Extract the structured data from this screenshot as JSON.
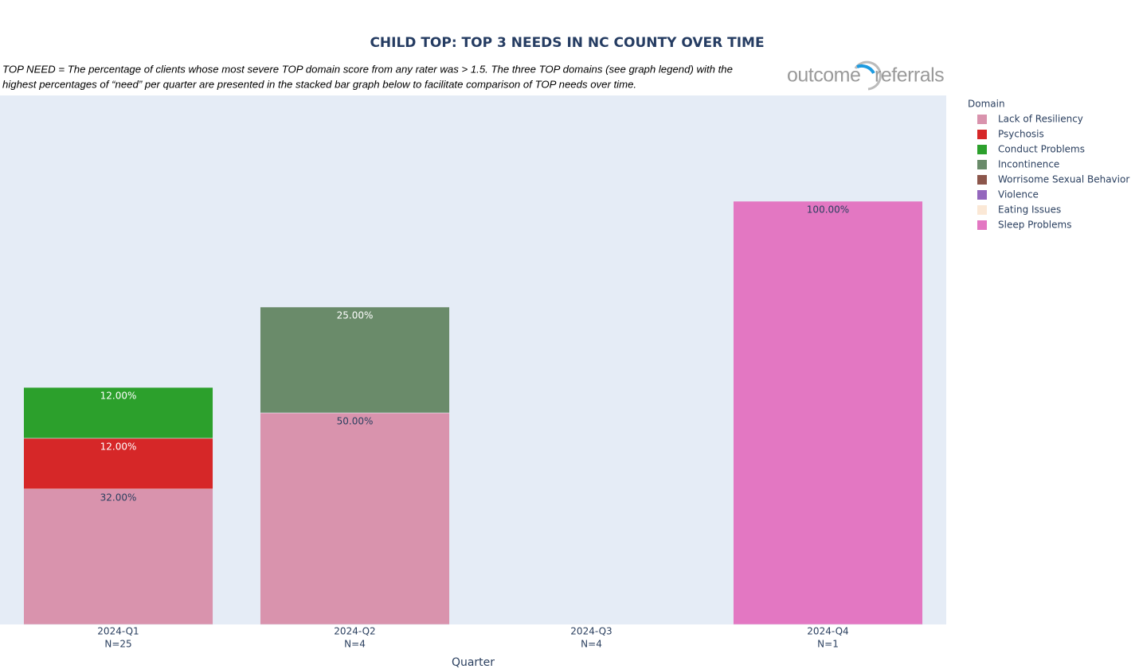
{
  "chart_data": {
    "type": "bar",
    "title": "CHILD TOP: TOP 3 NEEDS IN NC COUNTY OVER TIME",
    "description": [
      "TOP NEED = The percentage of clients whose most severe TOP domain score from any rater was > 1.5.  The three TOP domains (see graph legend) with the",
      "highest percentages of “need” per quarter are presented in the stacked bar graph below to facilitate comparison of TOP needs over time."
    ],
    "logo": [
      "outcome",
      "referrals"
    ],
    "x_label": "Quarter",
    "legend_title": "Domain",
    "categories": [
      "2024-Q1",
      "2024-Q2",
      "2024-Q3",
      "2024-Q4"
    ],
    "n_labels": [
      "N=25",
      "N=4",
      "N=4",
      "N=1"
    ],
    "ylim": [
      0,
      125
    ],
    "series": [
      {
        "name": "Lack of Resiliency",
        "color": "#d993ad",
        "values": [
          32,
          50,
          null,
          null
        ],
        "value_labels": [
          "32.00%",
          "50.00%",
          null,
          null
        ]
      },
      {
        "name": "Psychosis",
        "color": "#d62728",
        "values": [
          12,
          null,
          null,
          null
        ],
        "value_labels": [
          "12.00%",
          null,
          null,
          null
        ]
      },
      {
        "name": "Conduct Problems",
        "color": "#2ca02c",
        "values": [
          12,
          null,
          null,
          null
        ],
        "value_labels": [
          "12.00%",
          null,
          null,
          null
        ]
      },
      {
        "name": "Incontinence",
        "color": "#6a8b6a",
        "values": [
          null,
          25,
          null,
          null
        ],
        "value_labels": [
          null,
          "25.00%",
          null,
          null
        ]
      },
      {
        "name": "Worrisome Sexual Behavior",
        "color": "#8c564b",
        "values": [
          null,
          null,
          null,
          null
        ],
        "value_labels": [
          null,
          null,
          null,
          null
        ]
      },
      {
        "name": "Violence",
        "color": "#9467bd",
        "values": [
          null,
          null,
          null,
          null
        ],
        "value_labels": [
          null,
          null,
          null,
          null
        ]
      },
      {
        "name": "Eating Issues",
        "color": "#fbe8d6",
        "values": [
          null,
          null,
          null,
          null
        ],
        "value_labels": [
          null,
          null,
          null,
          null
        ]
      },
      {
        "name": "Sleep Problems",
        "color": "#e377c2",
        "values": [
          null,
          null,
          null,
          100
        ],
        "value_labels": [
          null,
          null,
          null,
          "100.00%"
        ]
      }
    ]
  }
}
